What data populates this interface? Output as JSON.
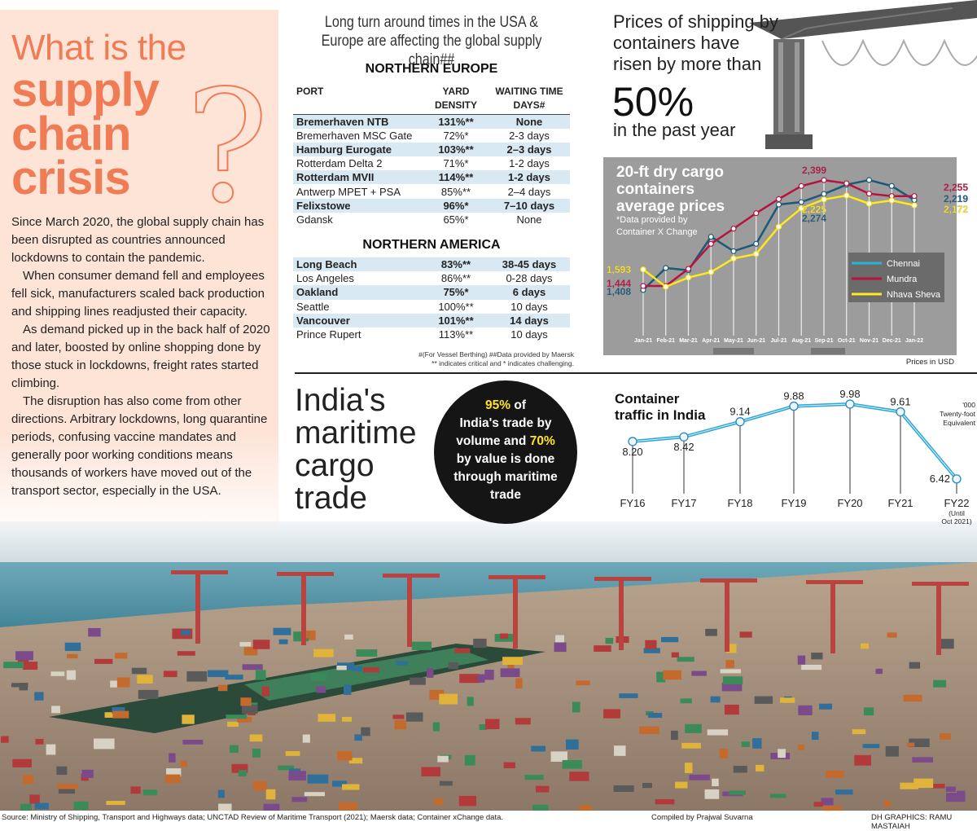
{
  "left": {
    "title_light": "What is the",
    "title_bold": [
      "supply",
      "chain",
      "crisis"
    ],
    "question_mark": "?",
    "paragraphs": [
      "Since March 2020, the global supply chain has been disrupted as countries announced lockdowns to contain the pandemic.",
      "When consumer demand fell and employees fell sick, manufacturers scaled back production and shipping lines readjusted their capacity.",
      "As demand picked up in the back half of 2020 and later, boosted by online shopping done by those stuck in lockdowns, freight rates started climbing.",
      "The disruption has also come from other directions. Arbitrary lockdowns, long quarantine periods, confusing vaccine mandates and generally poor working conditions means thousands of workers have moved out of the transport sector, especially in the USA."
    ]
  },
  "ports": {
    "title": "Long turn around times in the USA & Europe are affecting the global supply chain##",
    "headers": [
      "PORT",
      "YARD DENSITY",
      "WAITING TIME DAYS#"
    ],
    "northern_europe": {
      "label": "NORTHERN EUROPE",
      "rows": [
        [
          "Bremerhaven NTB",
          "131%**",
          "None"
        ],
        [
          "Bremerhaven MSC Gate",
          "72%*",
          "2-3 days"
        ],
        [
          "Hamburg Eurogate",
          "103%**",
          "2–3 days"
        ],
        [
          "Rotterdam Delta 2",
          "71%*",
          "1-2 days"
        ],
        [
          "Rotterdam MVII",
          "114%**",
          "1-2 days"
        ],
        [
          "Antwerp MPET + PSA",
          "85%**",
          "2–4 days"
        ],
        [
          "Felixstowe",
          "96%*",
          "7–10 days"
        ],
        [
          "Gdansk",
          "65%*",
          "None"
        ]
      ]
    },
    "northern_america": {
      "label": "NORTHERN AMERICA",
      "rows": [
        [
          "Long Beach",
          "83%**",
          "38-45 days"
        ],
        [
          "Los Angeles",
          "86%**",
          "0-28 days"
        ],
        [
          "Oakland",
          "75%*",
          "6 days"
        ],
        [
          "Seattle",
          "100%**",
          "10 days"
        ],
        [
          "Vancouver",
          "101%**",
          "14 days"
        ],
        [
          "Prince Rupert",
          "113%**",
          "10 days"
        ]
      ]
    },
    "note1": "#(For Vessel Berthing)  ##Data provided by Maersk",
    "note2": "** indicates critical and * indicates challenging."
  },
  "prices": {
    "line1": "Prices of shipping by",
    "line2": "containers have",
    "line3": "risen by more than",
    "pct": "50%",
    "line4": "in the past year"
  },
  "india": {
    "title": [
      "India's",
      "maritime",
      "cargo",
      "trade"
    ],
    "circle": {
      "a": "95%",
      "b": " of",
      "c": "India's trade by",
      "d": "volume and ",
      "e": "70%",
      "f": "by value is done",
      "g": "through maritime",
      "h": "trade"
    }
  },
  "chart_data": [
    {
      "type": "line",
      "title": "20-ft dry cargo containers average prices",
      "subtitle": "*Data provided by Container X Change",
      "unit_note": "Prices in USD",
      "categories": [
        "Jan-21",
        "Feb-21",
        "Mar-21",
        "Apr-21",
        "May-21",
        "Jun-21",
        "Jul-21",
        "Aug-21",
        "Sep-21",
        "Oct-21",
        "Nov-21",
        "Dec-21",
        "Jan-22"
      ],
      "legend_position": "right",
      "grid": "vertical",
      "series": [
        {
          "name": "Chennai",
          "color": "#1a5a78",
          "values": [
            1408,
            1606,
            1586,
            1888,
            1758,
            1824,
            2179,
            2201,
            2274,
            2358,
            2400,
            2346,
            2219
          ],
          "labels": {
            "0": "1,408",
            "8": "2,274",
            "12": "2,219"
          }
        },
        {
          "name": "Mundra",
          "color": "#b8123f",
          "values": [
            1444,
            1444,
            1598,
            1824,
            1961,
            2101,
            2228,
            2346,
            2399,
            2370,
            2277,
            2255,
            2255
          ],
          "labels": {
            "0": "1,444",
            "8": "2,399",
            "12": "2,255"
          }
        },
        {
          "name": "Nhava Sheva",
          "color": "#ffe81c",
          "values": [
            1593,
            1437,
            1520,
            1569,
            1692,
            1733,
            1978,
            2145,
            2225,
            2260,
            2187,
            2216,
            2172
          ],
          "labels": {
            "0": "1,593",
            "8": "2,225",
            "12": "2,172"
          }
        }
      ]
    },
    {
      "type": "line",
      "title": "Container traffic in India",
      "unit_note": [
        "'000",
        "Twenty-foot",
        "Equivalent"
      ],
      "categories": [
        "FY16",
        "FY17",
        "FY18",
        "FY19",
        "FY20",
        "FY21",
        "FY22"
      ],
      "category_note": [
        "(Until",
        "Oct 2021)"
      ],
      "values": [
        8.2,
        8.42,
        9.14,
        9.88,
        9.98,
        9.61,
        6.42
      ],
      "value_labels": [
        "8.20",
        "8.42",
        "9.14",
        "9.88",
        "9.98",
        "9.61",
        "6.42"
      ],
      "color": "#2fa7d6"
    }
  ],
  "footer": {
    "source": "Source: Ministry of Shipping, Transport and Highways data; UNCTAD Review of Maritime Transport (2021); Maersk data; Container xChange data.",
    "compiled": "Compiled by Prajwal Suvarna",
    "credit": "DH GRAPHICS: RAMU MASTAIAH"
  }
}
